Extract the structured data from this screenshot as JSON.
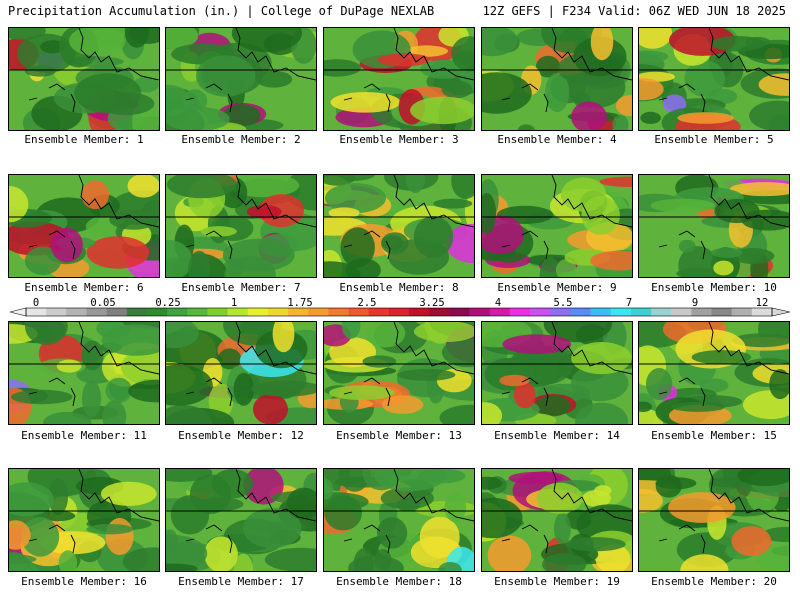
{
  "header": {
    "left": "Precipitation Accumulation (in.) | College of DuPage NEXLAB",
    "right": "12Z GEFS | F234 Valid: 06Z WED JUN 18 2025"
  },
  "panels": [
    {
      "label": "Ensemble Member: 1"
    },
    {
      "label": "Ensemble Member: 2"
    },
    {
      "label": "Ensemble Member: 3"
    },
    {
      "label": "Ensemble Member: 4"
    },
    {
      "label": "Ensemble Member: 5"
    },
    {
      "label": "Ensemble Member: 6"
    },
    {
      "label": "Ensemble Member: 7"
    },
    {
      "label": "Ensemble Member: 8"
    },
    {
      "label": "Ensemble Member: 9"
    },
    {
      "label": "Ensemble Member: 10"
    },
    {
      "label": "Ensemble Member: 11"
    },
    {
      "label": "Ensemble Member: 12"
    },
    {
      "label": "Ensemble Member: 13"
    },
    {
      "label": "Ensemble Member: 14"
    },
    {
      "label": "Ensemble Member: 15"
    },
    {
      "label": "Ensemble Member: 16"
    },
    {
      "label": "Ensemble Member: 17"
    },
    {
      "label": "Ensemble Member: 18"
    },
    {
      "label": "Ensemble Member: 19"
    },
    {
      "label": "Ensemble Member: 20"
    }
  ],
  "colorbar": {
    "tick_labels": [
      "0",
      "0.05",
      "0.25",
      "1",
      "1.75",
      "2.5",
      "3.25",
      "4",
      "5.5",
      "7",
      "9",
      "12"
    ],
    "colors": [
      "#e6e6e6",
      "#cccccc",
      "#b3b3b3",
      "#999999",
      "#808080",
      "#3a7d3a",
      "#2e8b2e",
      "#3fa33f",
      "#55b83a",
      "#7fcf2e",
      "#b3e62e",
      "#e6f02e",
      "#f0d72e",
      "#f5b52e",
      "#f59a2e",
      "#f27a2e",
      "#ee5a2e",
      "#e6362e",
      "#d9242e",
      "#c0102a",
      "#a00c30",
      "#8b0a50",
      "#b0107a",
      "#d41aa6",
      "#ee2ee6",
      "#c850f0",
      "#8c6ef5",
      "#5a8cf5",
      "#3cbef5",
      "#3ce6f0",
      "#3cd2d2",
      "#9ad2d2",
      "#c8c8c8",
      "#a0a0a0",
      "#888888",
      "#b0b0b0",
      "#dcdcdc"
    ]
  }
}
